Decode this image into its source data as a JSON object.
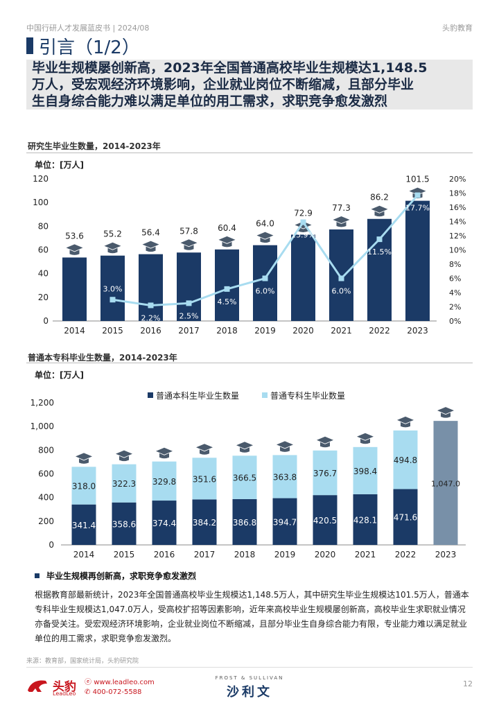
{
  "header": {
    "left": "中国行研人才发展蓝皮书 | 2024/08",
    "right": "头豹教育"
  },
  "title": "引言（1/2）",
  "headline": [
    "毕业生规模屡创新高，2023年全国普通高校毕业生规模达1,148.5",
    "万人，受宏观经济环境影响，企业就业岗位不断缩减，且部分毕业",
    "生自身综合能力难以满足单位的用工需求，求职竞争愈发激烈"
  ],
  "colors": {
    "navy": "#1b3a66",
    "light_blue": "#a8dcf0",
    "line": "#a8dcf0",
    "gray_bar": "#7890a8",
    "cap": "#4a5a6c"
  },
  "chart_data": [
    {
      "type": "bar",
      "title": "研究生毕业生数量，2014-2023年",
      "unit": "单位：[万人]",
      "categories": [
        "2014",
        "2015",
        "2016",
        "2017",
        "2018",
        "2019",
        "2020",
        "2021",
        "2022",
        "2023"
      ],
      "values": [
        53.6,
        55.2,
        56.4,
        57.8,
        60.4,
        64.0,
        72.9,
        77.3,
        86.2,
        101.5
      ],
      "value_labels": [
        "53.6",
        "55.2",
        "56.4",
        "57.8",
        "60.4",
        "64.0",
        "72.9",
        "77.3",
        "86.2",
        "101.5"
      ],
      "ylim": [
        0,
        120
      ],
      "yticks": [
        "0",
        "20",
        "40",
        "60",
        "80",
        "100",
        "120"
      ],
      "growth": {
        "type": "line",
        "values": [
          null,
          3.0,
          2.2,
          2.5,
          4.5,
          6.0,
          13.9,
          6.0,
          11.5,
          17.7
        ],
        "labels": [
          null,
          "3.0%",
          "2.2%",
          "2.5%",
          "4.5%",
          "6.0%",
          "13.9%",
          "6.0%",
          "11.5%",
          "17.7%"
        ],
        "ylim": [
          0,
          20
        ],
        "yticks": [
          "0%",
          "2%",
          "4%",
          "6%",
          "8%",
          "10%",
          "12%",
          "14%",
          "16%",
          "18%",
          "20%"
        ]
      }
    },
    {
      "type": "bar",
      "stacked": true,
      "title": "普通本专科毕业生数量，2014-2023年",
      "unit": "单位：[万人]",
      "categories": [
        "2014",
        "2015",
        "2016",
        "2017",
        "2018",
        "2019",
        "2020",
        "2021",
        "2022",
        "2023"
      ],
      "series": [
        {
          "name": "普通本科生毕业生数量",
          "values": [
            341.4,
            358.6,
            374.4,
            384.2,
            386.8,
            394.7,
            420.5,
            428.1,
            471.6,
            null
          ],
          "labels": [
            "341.4",
            "358.6",
            "374.4",
            "384.2",
            "386.8",
            "394.7",
            "420.5",
            "428.1",
            "471.6",
            null
          ]
        },
        {
          "name": "普通专科生毕业数量",
          "values": [
            318.0,
            322.3,
            329.8,
            351.6,
            366.5,
            363.8,
            376.7,
            398.4,
            494.8,
            null
          ],
          "labels": [
            "318.0",
            "322.3",
            "329.8",
            "351.6",
            "366.5",
            "363.8",
            "376.7",
            "398.4",
            "494.8",
            null
          ]
        }
      ],
      "total_2023": {
        "value": 1047.0,
        "label": "1,047.0"
      },
      "ylim": [
        0,
        1200
      ],
      "yticks": [
        "0",
        "200",
        "400",
        "600",
        "800",
        "1,000",
        "1,200"
      ],
      "legend": "top-right"
    }
  ],
  "section": {
    "heading": "毕业生规模再创新高，求职竞争愈发激烈",
    "body": "根据教育部最新统计，2023年全国普通高校毕业生规模达1,148.5万人，其中研究生毕业生规模达101.5万人，普通本专科毕业生规模达1,047.0万人，受高校扩招等因素影响，近年来高校毕业生规模屡创新高，高校毕业生求职就业情况亦备受关注。受宏观经济环境影响，企业就业岗位不断缩减，且部分毕业生自身综合能力有限，专业能力难以满足就业单位的用工需求，求职竞争愈发激烈。"
  },
  "source": "来源：教育部，国家统计局，头豹研究院",
  "footer": {
    "logo_cn": "头豹",
    "logo_en": "LeadLeo",
    "website": "www.leadleo.com",
    "phone": "400-072-5588",
    "partner_en": "FROST & SULLIVAN",
    "partner_cn": "沙利文",
    "page": "12"
  }
}
